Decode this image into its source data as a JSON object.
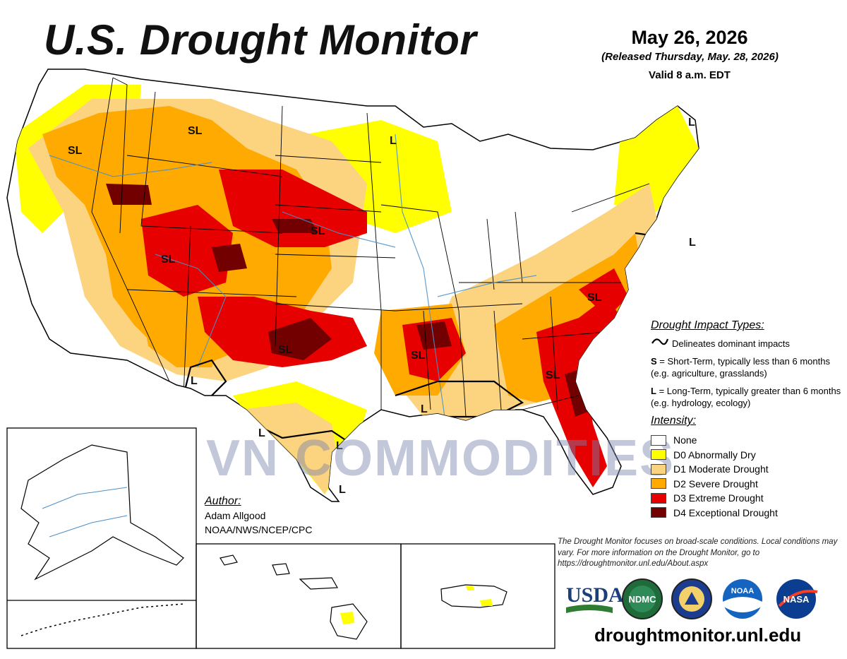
{
  "header": {
    "title": "U.S. Drought Monitor",
    "date": "May 26, 2026",
    "released": "(Released Thursday, May. 28, 2026)",
    "valid": "Valid 8 a.m. EDT"
  },
  "map_labels": [
    "SL",
    "SL",
    "L",
    "L",
    "SL",
    "SL",
    "L",
    "SL",
    "SL",
    "SL",
    "SL",
    "L",
    "L",
    "L",
    "L",
    "L"
  ],
  "impact_types": {
    "heading": "Drought Impact Types:",
    "delineates": "Delineates dominant impacts",
    "short_term_code": "S",
    "short_term": "= Short-Term, typically less than 6 months (e.g. agriculture, grasslands)",
    "long_term_code": "L",
    "long_term": "= Long-Term, typically greater than 6 months (e.g. hydrology, ecology)"
  },
  "intensity": {
    "heading": "Intensity:",
    "levels": [
      {
        "label": "None",
        "color": "#ffffff"
      },
      {
        "label": "D0 Abnormally Dry",
        "color": "#ffff00"
      },
      {
        "label": "D1 Moderate Drought",
        "color": "#fcd37f"
      },
      {
        "label": "D2 Severe Drought",
        "color": "#ffaa00"
      },
      {
        "label": "D3 Extreme Drought",
        "color": "#e60000"
      },
      {
        "label": "D4 Exceptional Drought",
        "color": "#730000"
      }
    ]
  },
  "author": {
    "heading": "Author:",
    "name": "Adam Allgood",
    "org": "NOAA/NWS/NCEP/CPC"
  },
  "note": "The Drought Monitor focuses on broad-scale conditions. Local conditions may vary. For more information on the Drought Monitor, go to https://droughtmonitor.unl.edu/About.aspx",
  "logos": [
    "USDA",
    "NDMC",
    "NOAA",
    "NASA"
  ],
  "url": "droughtmonitor.unl.edu",
  "watermark": "VN COMMODITIES"
}
